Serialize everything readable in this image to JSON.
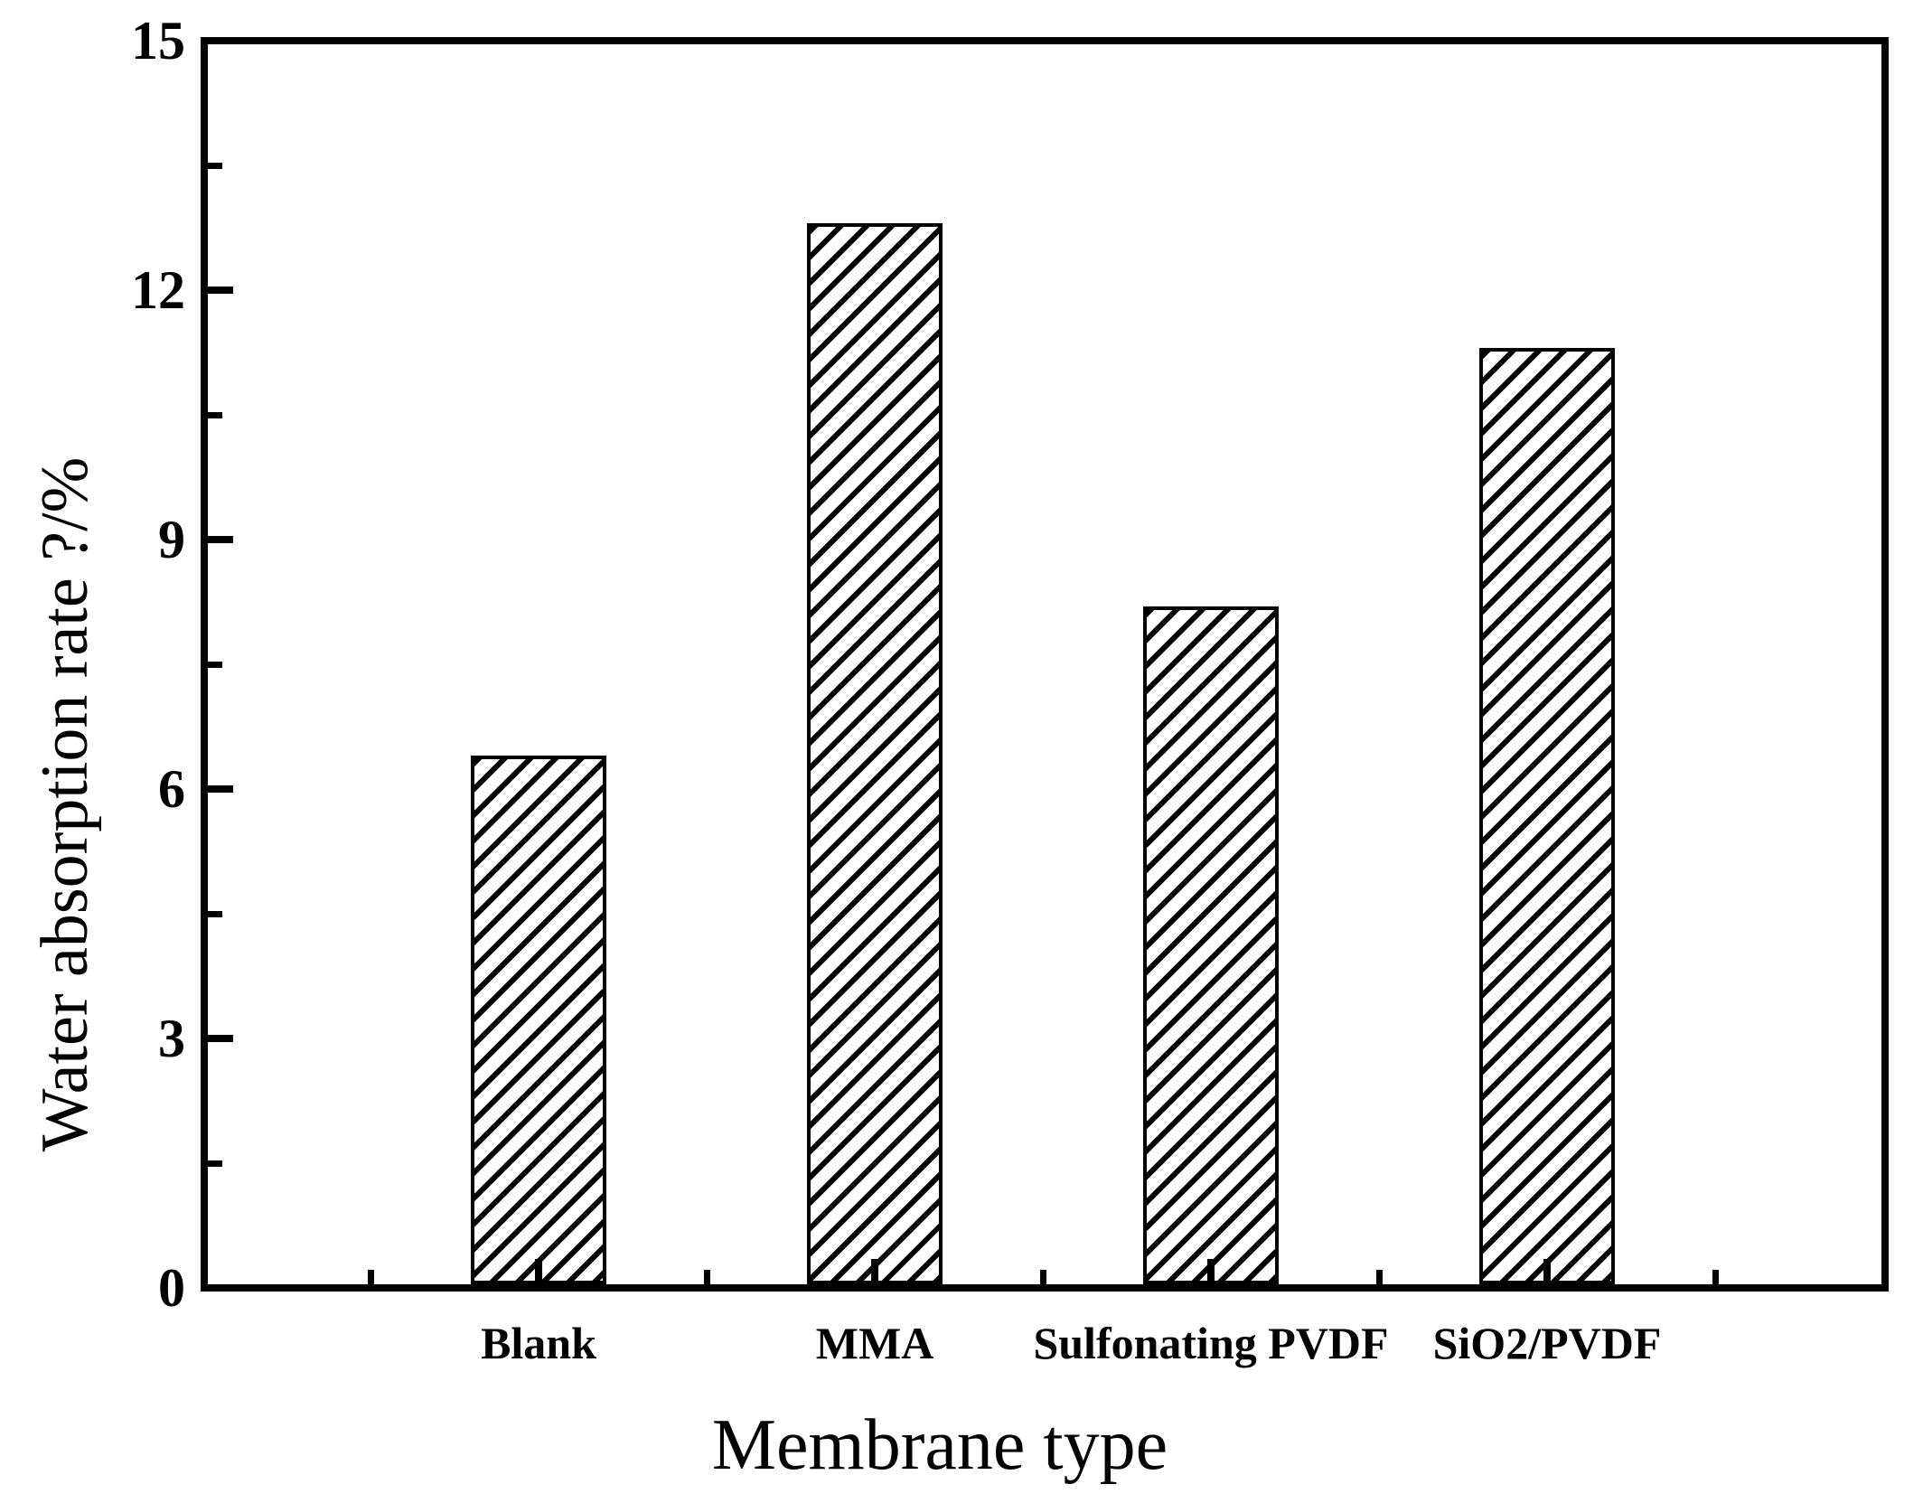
{
  "chart_data": {
    "type": "bar",
    "title": "",
    "xlabel": "Membrane type",
    "ylabel": "Water absorption rate ?/%",
    "categories": [
      "Blank",
      "MMA",
      "Sulfonating PVDF",
      "SiO2/PVDF"
    ],
    "values": [
      6.4,
      12.8,
      8.2,
      11.3
    ],
    "ylim": [
      0,
      15
    ],
    "yticks": [
      0,
      3,
      6,
      9,
      12,
      15
    ],
    "yticklabels": [
      "0",
      "3",
      "6",
      "9",
      "12",
      "15"
    ],
    "y_minor_tick_step": 1.5,
    "bar_style": "diagonal-hatch",
    "bar_color": "#000000",
    "bar_fill_background": "#ffffff",
    "axis_color": "#000000",
    "background_color": "#ffffff",
    "grid": "off",
    "legend": "none"
  }
}
